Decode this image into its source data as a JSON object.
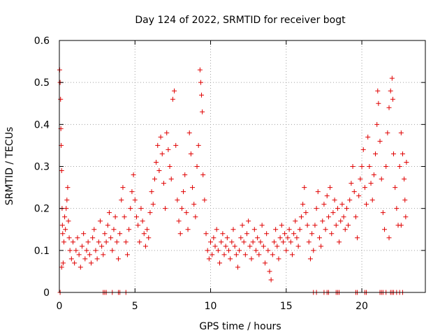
{
  "chart_data": {
    "type": "scatter",
    "title": "Day 124 of 2022, SRMTID for receiver bogt",
    "xlabel": "GPS time / hours",
    "ylabel": "SRMTID / TECUs",
    "xlim": [
      0,
      24.2
    ],
    "ylim": [
      0,
      0.6
    ],
    "xticks": [
      0,
      5,
      10,
      15,
      20
    ],
    "yticks": [
      0,
      0.1,
      0.2,
      0.3,
      0.4,
      0.5,
      0.6
    ],
    "xtick_labels": [
      "0",
      "5",
      "10",
      "15",
      "20"
    ],
    "ytick_labels": [
      "0",
      "0.1",
      "0.2",
      "0.3",
      "0.4",
      "0.5",
      "0.6"
    ],
    "grid": true,
    "marker": "plus",
    "color": "#e00000",
    "series": [
      {
        "name": "SRMTID",
        "points": [
          [
            0.02,
            0.53
          ],
          [
            0.05,
            0.5
          ],
          [
            0.08,
            0.46
          ],
          [
            0.1,
            0.39
          ],
          [
            0.12,
            0.35
          ],
          [
            0.15,
            0.29
          ],
          [
            0.18,
            0.2
          ],
          [
            0.2,
            0.16
          ],
          [
            0.22,
            0.14
          ],
          [
            0.25,
            0.07
          ],
          [
            0.3,
            0.12
          ],
          [
            0.35,
            0.18
          ],
          [
            0.4,
            0.15
          ],
          [
            0.45,
            0.2
          ],
          [
            0.5,
            0.22
          ],
          [
            0.55,
            0.25
          ],
          [
            0.6,
            0.17
          ],
          [
            0.65,
            0.13
          ],
          [
            0.7,
            0.1
          ],
          [
            0.8,
            0.08
          ],
          [
            0.9,
            0.12
          ],
          [
            1.0,
            0.07
          ],
          [
            1.1,
            0.1
          ],
          [
            1.2,
            0.13
          ],
          [
            1.3,
            0.09
          ],
          [
            1.4,
            0.06
          ],
          [
            1.5,
            0.11
          ],
          [
            1.6,
            0.14
          ],
          [
            1.7,
            0.08
          ],
          [
            1.8,
            0.1
          ],
          [
            1.9,
            0.12
          ],
          [
            2.0,
            0.09
          ],
          [
            2.1,
            0.07
          ],
          [
            2.2,
            0.13
          ],
          [
            2.3,
            0.15
          ],
          [
            2.4,
            0.1
          ],
          [
            2.5,
            0.08
          ],
          [
            2.6,
            0.12
          ],
          [
            2.7,
            0.17
          ],
          [
            2.8,
            0.11
          ],
          [
            2.9,
            0.09
          ],
          [
            3.0,
            0.14
          ],
          [
            3.1,
            0.12
          ],
          [
            3.2,
            0.16
          ],
          [
            3.3,
            0.19
          ],
          [
            3.4,
            0.13
          ],
          [
            3.5,
            0.1
          ],
          [
            3.6,
            0.15
          ],
          [
            3.7,
            0.18
          ],
          [
            3.8,
            0.12
          ],
          [
            3.9,
            0.08
          ],
          [
            4.0,
            0.14
          ],
          [
            4.1,
            0.22
          ],
          [
            4.2,
            0.25
          ],
          [
            4.3,
            0.18
          ],
          [
            4.4,
            0.12
          ],
          [
            4.5,
            0.09
          ],
          [
            4.6,
            0.15
          ],
          [
            4.7,
            0.2
          ],
          [
            4.8,
            0.24
          ],
          [
            4.9,
            0.28
          ],
          [
            5.0,
            0.22
          ],
          [
            5.1,
            0.18
          ],
          [
            5.2,
            0.16
          ],
          [
            5.3,
            0.12
          ],
          [
            5.4,
            0.2
          ],
          [
            5.5,
            0.17
          ],
          [
            5.6,
            0.14
          ],
          [
            5.7,
            0.11
          ],
          [
            5.8,
            0.15
          ],
          [
            5.9,
            0.13
          ],
          [
            6.0,
            0.19
          ],
          [
            6.1,
            0.24
          ],
          [
            6.2,
            0.21
          ],
          [
            6.3,
            0.27
          ],
          [
            6.4,
            0.31
          ],
          [
            6.5,
            0.35
          ],
          [
            6.6,
            0.29
          ],
          [
            6.7,
            0.37
          ],
          [
            6.8,
            0.33
          ],
          [
            6.9,
            0.26
          ],
          [
            7.0,
            0.2
          ],
          [
            7.1,
            0.38
          ],
          [
            7.2,
            0.34
          ],
          [
            7.3,
            0.3
          ],
          [
            7.4,
            0.27
          ],
          [
            7.5,
            0.46
          ],
          [
            7.6,
            0.48
          ],
          [
            7.7,
            0.35
          ],
          [
            7.8,
            0.22
          ],
          [
            7.9,
            0.17
          ],
          [
            8.0,
            0.14
          ],
          [
            8.1,
            0.2
          ],
          [
            8.2,
            0.24
          ],
          [
            8.3,
            0.28
          ],
          [
            8.4,
            0.19
          ],
          [
            8.5,
            0.15
          ],
          [
            8.6,
            0.38
          ],
          [
            8.7,
            0.33
          ],
          [
            8.8,
            0.25
          ],
          [
            8.9,
            0.21
          ],
          [
            9.0,
            0.18
          ],
          [
            9.1,
            0.3
          ],
          [
            9.2,
            0.35
          ],
          [
            9.3,
            0.53
          ],
          [
            9.35,
            0.5
          ],
          [
            9.4,
            0.47
          ],
          [
            9.45,
            0.43
          ],
          [
            9.5,
            0.28
          ],
          [
            9.6,
            0.22
          ],
          [
            9.7,
            0.14
          ],
          [
            9.8,
            0.1
          ],
          [
            9.9,
            0.08
          ],
          [
            10.0,
            0.12
          ],
          [
            10.1,
            0.09
          ],
          [
            10.2,
            0.13
          ],
          [
            10.3,
            0.11
          ],
          [
            10.4,
            0.15
          ],
          [
            10.5,
            0.1
          ],
          [
            10.6,
            0.07
          ],
          [
            10.7,
            0.12
          ],
          [
            10.8,
            0.14
          ],
          [
            10.9,
            0.09
          ],
          [
            11.0,
            0.11
          ],
          [
            11.1,
            0.13
          ],
          [
            11.2,
            0.1
          ],
          [
            11.3,
            0.08
          ],
          [
            11.4,
            0.12
          ],
          [
            11.5,
            0.15
          ],
          [
            11.6,
            0.11
          ],
          [
            11.7,
            0.09
          ],
          [
            11.8,
            0.06
          ],
          [
            11.9,
            0.1
          ],
          [
            12.0,
            0.13
          ],
          [
            12.1,
            0.16
          ],
          [
            12.2,
            0.12
          ],
          [
            12.3,
            0.09
          ],
          [
            12.4,
            0.14
          ],
          [
            12.5,
            0.17
          ],
          [
            12.6,
            0.11
          ],
          [
            12.7,
            0.08
          ],
          [
            12.8,
            0.12
          ],
          [
            12.9,
            0.15
          ],
          [
            13.0,
            0.1
          ],
          [
            13.1,
            0.13
          ],
          [
            13.2,
            0.09
          ],
          [
            13.3,
            0.12
          ],
          [
            13.4,
            0.16
          ],
          [
            13.5,
            0.11
          ],
          [
            13.6,
            0.07
          ],
          [
            13.7,
            0.14
          ],
          [
            13.8,
            0.1
          ],
          [
            13.9,
            0.05
          ],
          [
            14.0,
            0.03
          ],
          [
            14.1,
            0.09
          ],
          [
            14.2,
            0.12
          ],
          [
            14.3,
            0.15
          ],
          [
            14.4,
            0.11
          ],
          [
            14.5,
            0.08
          ],
          [
            14.6,
            0.13
          ],
          [
            14.7,
            0.16
          ],
          [
            14.8,
            0.12
          ],
          [
            14.9,
            0.14
          ],
          [
            15.0,
            0.1
          ],
          [
            15.1,
            0.13
          ],
          [
            15.2,
            0.15
          ],
          [
            15.3,
            0.12
          ],
          [
            15.4,
            0.09
          ],
          [
            15.5,
            0.14
          ],
          [
            15.6,
            0.17
          ],
          [
            15.7,
            0.13
          ],
          [
            15.8,
            0.11
          ],
          [
            15.9,
            0.15
          ],
          [
            16.0,
            0.18
          ],
          [
            16.1,
            0.21
          ],
          [
            16.2,
            0.25
          ],
          [
            16.3,
            0.19
          ],
          [
            16.4,
            0.16
          ],
          [
            16.5,
            0.12
          ],
          [
            16.6,
            0.08
          ],
          [
            16.7,
            0.14
          ],
          [
            16.8,
            0.1
          ],
          [
            16.9,
            0.16
          ],
          [
            17.0,
            0.2
          ],
          [
            17.1,
            0.24
          ],
          [
            17.2,
            0.13
          ],
          [
            17.3,
            0.11
          ],
          [
            17.4,
            0.17
          ],
          [
            17.5,
            0.21
          ],
          [
            17.6,
            0.15
          ],
          [
            17.7,
            0.23
          ],
          [
            17.8,
            0.18
          ],
          [
            17.9,
            0.25
          ],
          [
            18.0,
            0.14
          ],
          [
            18.1,
            0.19
          ],
          [
            18.2,
            0.22
          ],
          [
            18.3,
            0.16
          ],
          [
            18.4,
            0.2
          ],
          [
            18.5,
            0.12
          ],
          [
            18.6,
            0.17
          ],
          [
            18.7,
            0.21
          ],
          [
            18.8,
            0.18
          ],
          [
            18.9,
            0.15
          ],
          [
            19.0,
            0.2
          ],
          [
            19.1,
            0.16
          ],
          [
            19.2,
            0.22
          ],
          [
            19.3,
            0.26
          ],
          [
            19.4,
            0.3
          ],
          [
            19.5,
            0.24
          ],
          [
            19.6,
            0.18
          ],
          [
            19.7,
            0.13
          ],
          [
            19.8,
            0.23
          ],
          [
            19.9,
            0.27
          ],
          [
            20.0,
            0.3
          ],
          [
            20.1,
            0.34
          ],
          [
            20.2,
            0.25
          ],
          [
            20.3,
            0.21
          ],
          [
            20.4,
            0.37
          ],
          [
            20.5,
            0.3
          ],
          [
            20.6,
            0.26
          ],
          [
            20.7,
            0.22
          ],
          [
            20.8,
            0.28
          ],
          [
            20.9,
            0.33
          ],
          [
            21.0,
            0.4
          ],
          [
            21.05,
            0.48
          ],
          [
            21.1,
            0.45
          ],
          [
            21.2,
            0.36
          ],
          [
            21.3,
            0.27
          ],
          [
            21.4,
            0.19
          ],
          [
            21.5,
            0.15
          ],
          [
            21.6,
            0.3
          ],
          [
            21.7,
            0.38
          ],
          [
            21.8,
            0.44
          ],
          [
            21.9,
            0.48
          ],
          [
            22.0,
            0.51
          ],
          [
            22.05,
            0.46
          ],
          [
            22.1,
            0.33
          ],
          [
            22.2,
            0.25
          ],
          [
            22.3,
            0.2
          ],
          [
            22.4,
            0.16
          ],
          [
            22.5,
            0.3
          ],
          [
            22.6,
            0.38
          ],
          [
            22.7,
            0.33
          ],
          [
            22.8,
            0.27
          ],
          [
            22.85,
            0.22
          ],
          [
            22.9,
            0.18
          ],
          [
            22.95,
            0.31
          ],
          [
            22.6,
            0.16
          ],
          [
            21.8,
            0.13
          ],
          [
            0.15,
            0.06
          ],
          [
            0.05,
            0.0
          ],
          [
            2.9,
            0.0
          ],
          [
            3.0,
            0.0
          ],
          [
            3.1,
            0.0
          ],
          [
            3.5,
            0.0
          ],
          [
            3.9,
            0.0
          ],
          [
            4.0,
            0.0
          ],
          [
            4.4,
            0.0
          ],
          [
            16.8,
            0.0
          ],
          [
            17.0,
            0.0
          ],
          [
            17.5,
            0.0
          ],
          [
            17.7,
            0.0
          ],
          [
            17.8,
            0.0
          ],
          [
            18.3,
            0.0
          ],
          [
            18.4,
            0.0
          ],
          [
            18.5,
            0.0
          ],
          [
            19.6,
            0.0
          ],
          [
            19.7,
            0.0
          ],
          [
            20.2,
            0.0
          ],
          [
            20.3,
            0.0
          ],
          [
            21.2,
            0.0
          ],
          [
            21.3,
            0.0
          ],
          [
            21.4,
            0.0
          ],
          [
            21.6,
            0.0
          ],
          [
            21.9,
            0.0
          ],
          [
            22.0,
            0.0
          ],
          [
            22.1,
            0.0
          ],
          [
            22.3,
            0.0
          ],
          [
            22.5,
            0.0
          ],
          [
            22.7,
            0.0
          ]
        ]
      }
    ]
  }
}
